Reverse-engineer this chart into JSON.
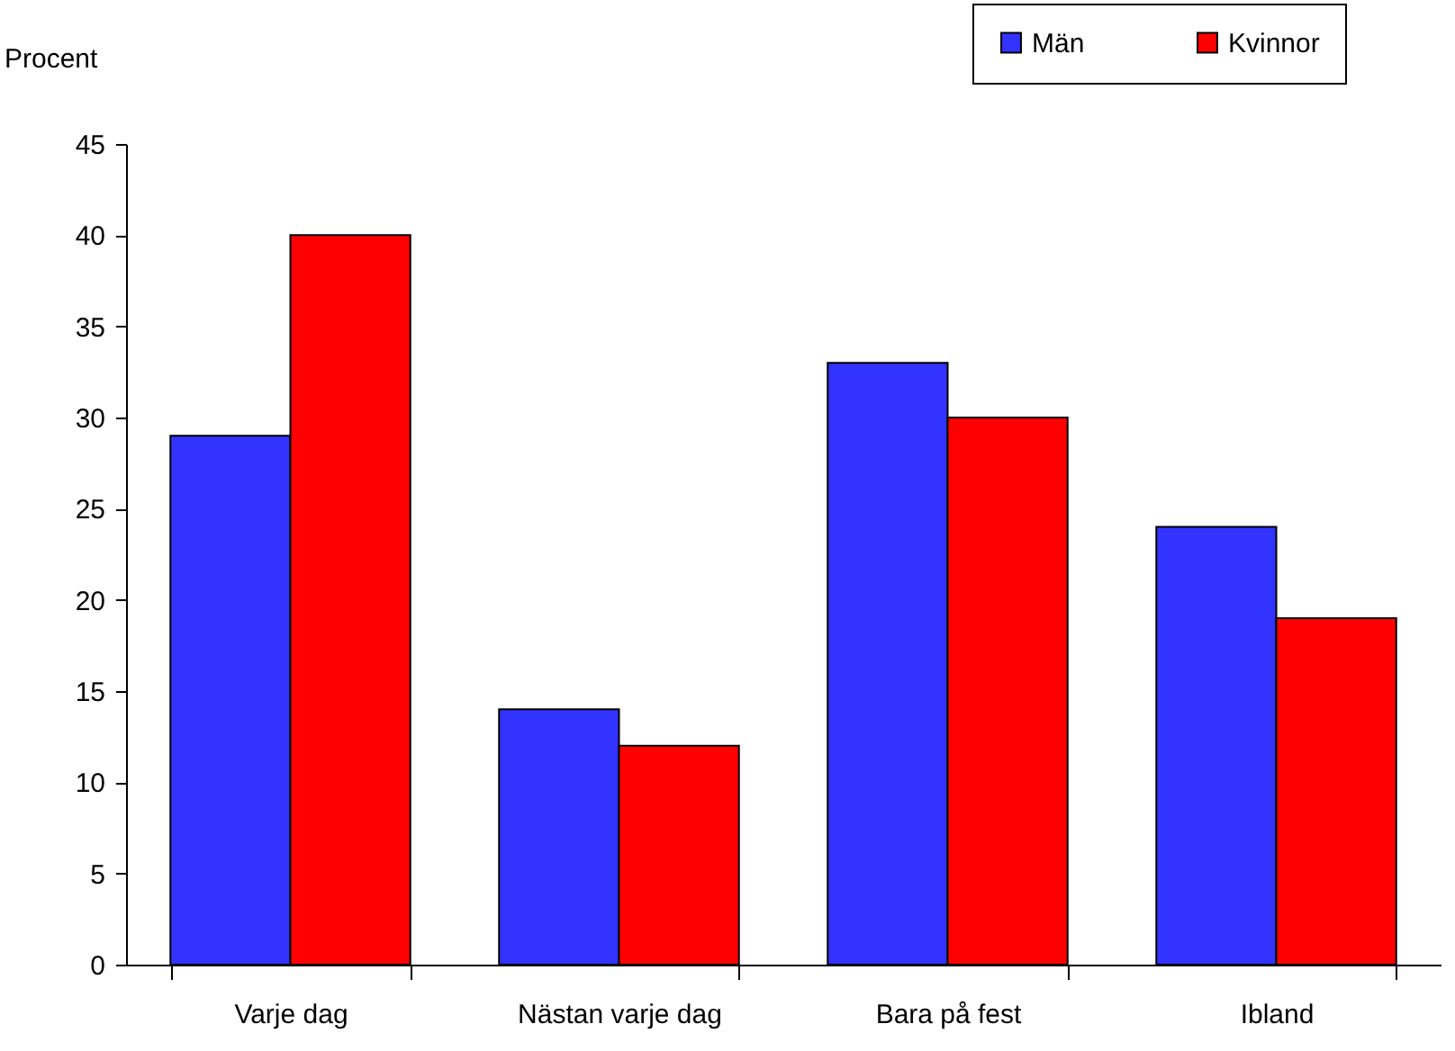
{
  "chart_data": {
    "type": "bar",
    "ylabel": "Procent",
    "categories": [
      "Varje dag",
      "Nästan varje dag",
      "Bara på fest",
      "Ibland"
    ],
    "series": [
      {
        "name": "Män",
        "color": "#3333ff",
        "values": [
          29,
          14,
          33,
          24
        ]
      },
      {
        "name": "Kvinnor",
        "color": "#ff0000",
        "values": [
          40,
          12,
          30,
          19
        ]
      }
    ],
    "ylim": [
      0,
      45
    ],
    "yticks": [
      0,
      5,
      10,
      15,
      20,
      25,
      30,
      35,
      40,
      45
    ],
    "legend": "top right"
  }
}
